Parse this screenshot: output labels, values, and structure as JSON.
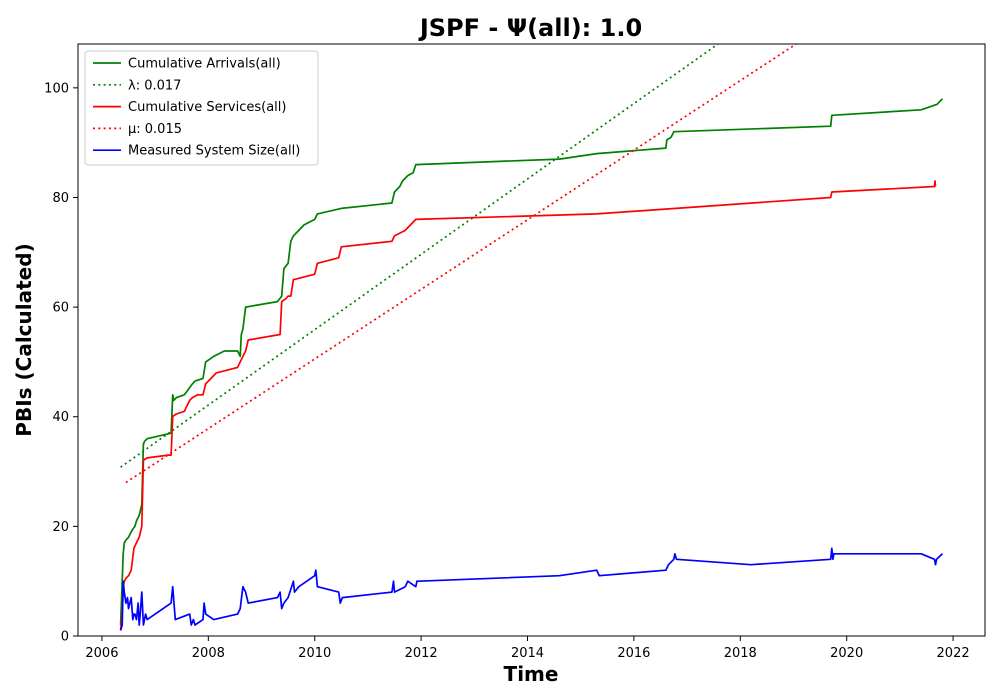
{
  "chart_data": {
    "type": "line",
    "title": "JSPF -  Ψ(all): 1.0",
    "xlabel": "Time",
    "ylabel": "PBIs (Calculated)",
    "xlim": [
      2005.55,
      2022.6
    ],
    "ylim": [
      0,
      108
    ],
    "xticks": [
      2006,
      2008,
      2010,
      2012,
      2014,
      2016,
      2018,
      2020,
      2022
    ],
    "yticks": [
      0,
      20,
      40,
      60,
      80,
      100
    ],
    "grid": false,
    "legend_position": "top-left",
    "series": [
      {
        "name": "Cumulative Arrivals(all)",
        "color": "#008000",
        "style": "solid",
        "x": [
          2006.35,
          2006.4,
          2006.42,
          2006.45,
          2006.5,
          2006.55,
          2006.58,
          2006.62,
          2006.65,
          2006.7,
          2006.75,
          2006.78,
          2006.8,
          2006.85,
          2007.3,
          2007.33,
          2007.35,
          2007.4,
          2007.55,
          2007.7,
          2007.75,
          2007.9,
          2007.95,
          2008.1,
          2008.3,
          2008.55,
          2008.6,
          2008.62,
          2008.65,
          2008.7,
          2009.3,
          2009.38,
          2009.42,
          2009.5,
          2009.55,
          2009.6,
          2009.7,
          2009.8,
          2010.0,
          2010.05,
          2010.5,
          2011.45,
          2011.5,
          2011.6,
          2011.65,
          2011.75,
          2011.85,
          2011.9,
          2014.6,
          2015.3,
          2016.6,
          2016.62,
          2016.7,
          2016.75,
          2019.7,
          2019.72,
          2021.4,
          2021.7,
          2021.8
        ],
        "values": [
          2,
          15,
          17,
          17.5,
          18,
          19,
          19.5,
          20,
          21,
          22,
          24,
          35,
          35.5,
          36,
          37,
          44,
          43,
          43.5,
          44,
          46,
          46.5,
          47,
          50,
          51,
          52,
          52,
          51,
          55,
          56,
          60,
          61,
          62,
          67,
          68,
          72,
          73,
          74,
          75,
          76,
          77,
          78,
          79,
          81,
          82,
          83,
          84,
          84.5,
          86,
          87,
          88,
          89,
          90.5,
          91,
          92,
          93,
          95,
          96,
          97,
          98
        ]
      },
      {
        "name": "λ: 0.017",
        "color": "#008000",
        "style": "dotted",
        "x": [
          2006.35,
          2017.58
        ],
        "values": [
          30.8,
          108
        ]
      },
      {
        "name": "Cumulative Services(all)",
        "color": "#ff0000",
        "style": "solid",
        "x": [
          2006.35,
          2006.38,
          2006.4,
          2006.42,
          2006.45,
          2006.5,
          2006.55,
          2006.6,
          2006.65,
          2006.7,
          2006.75,
          2006.78,
          2006.8,
          2006.85,
          2007.25,
          2007.3,
          2007.33,
          2007.35,
          2007.4,
          2007.55,
          2007.65,
          2007.7,
          2007.8,
          2007.9,
          2007.95,
          2008.05,
          2008.15,
          2008.55,
          2008.6,
          2008.65,
          2008.7,
          2008.75,
          2009.35,
          2009.38,
          2009.45,
          2009.5,
          2009.55,
          2009.6,
          2010.0,
          2010.05,
          2010.45,
          2010.5,
          2011.45,
          2011.5,
          2011.7,
          2011.75,
          2011.9,
          2015.3,
          2019.7,
          2019.72,
          2021.65,
          2021.66,
          2021.67
        ],
        "values": [
          1,
          4,
          9,
          10,
          10.5,
          11,
          12,
          16,
          17,
          18,
          20,
          32,
          32.2,
          32.5,
          33,
          33,
          40,
          40.2,
          40.5,
          41,
          43,
          43.5,
          44,
          44,
          46,
          47,
          48,
          49,
          50,
          51,
          52,
          54,
          55,
          61,
          61.5,
          62,
          62,
          65,
          66,
          68,
          69,
          71,
          72,
          73,
          74,
          74.5,
          76,
          77,
          80,
          81,
          82,
          83,
          82
        ]
      },
      {
        "name": "μ: 0.015",
        "color": "#ff0000",
        "style": "dotted",
        "x": [
          2006.45,
          2019.05
        ],
        "values": [
          28,
          108
        ]
      },
      {
        "name": "Measured System Size(all)",
        "color": "#0000ff",
        "style": "solid",
        "x": [
          2006.35,
          2006.38,
          2006.4,
          2006.42,
          2006.45,
          2006.48,
          2006.5,
          2006.55,
          2006.58,
          2006.6,
          2006.62,
          2006.65,
          2006.68,
          2006.7,
          2006.72,
          2006.75,
          2006.78,
          2006.8,
          2006.82,
          2006.85,
          2007.3,
          2007.33,
          2007.38,
          2007.65,
          2007.68,
          2007.72,
          2007.75,
          2007.9,
          2007.92,
          2007.95,
          2008.1,
          2008.55,
          2008.6,
          2008.65,
          2008.7,
          2008.75,
          2009.3,
          2009.35,
          2009.38,
          2009.42,
          2009.5,
          2009.6,
          2009.62,
          2009.7,
          2010.0,
          2010.02,
          2010.05,
          2010.45,
          2010.48,
          2010.52,
          2011.45,
          2011.48,
          2011.5,
          2011.7,
          2011.75,
          2011.9,
          2011.92,
          2011.95,
          2014.6,
          2015.3,
          2015.35,
          2016.6,
          2016.65,
          2016.75,
          2016.77,
          2016.8,
          2018.2,
          2019.7,
          2019.72,
          2019.74,
          2019.76,
          2021.4,
          2021.65,
          2021.67,
          2021.69,
          2021.8
        ],
        "values": [
          1,
          2,
          10,
          8,
          6,
          7,
          5,
          7,
          3,
          4,
          4,
          3,
          6,
          2,
          4,
          8,
          2,
          3,
          4,
          3,
          6,
          9,
          3,
          4,
          2,
          3,
          2,
          3,
          6,
          4,
          3,
          4,
          5,
          9,
          8,
          6,
          7,
          8,
          5,
          6,
          7,
          10,
          8,
          9,
          11,
          12,
          9,
          8,
          6,
          7,
          8,
          10,
          8,
          9,
          10,
          9,
          10,
          10,
          11,
          12,
          11,
          12,
          13,
          14,
          15,
          14,
          13,
          14,
          16,
          14,
          15,
          15,
          14,
          13,
          14,
          15
        ]
      }
    ]
  }
}
